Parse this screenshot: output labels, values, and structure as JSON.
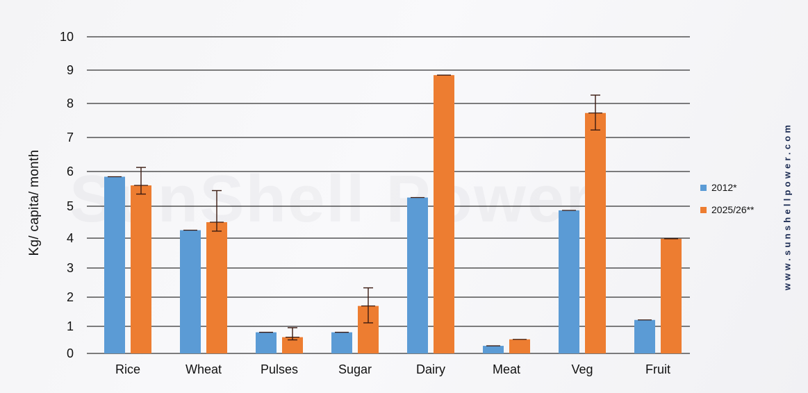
{
  "watermark": "SunShell Power",
  "site_url": "www.sunshellpower.com",
  "colors": {
    "series_2012": "#5b9bd5",
    "series_2025": "#ed7d31",
    "error_bar": "#3a1a10",
    "grid": "#000000"
  },
  "chart_data": {
    "type": "bar",
    "title": "",
    "xlabel": "",
    "ylabel": "Kg/ capita/ month",
    "ylim": [
      0,
      10
    ],
    "yticks": [
      "0",
      "1",
      "2",
      "3",
      "4",
      "5",
      "6",
      "7",
      "8",
      "9",
      "10"
    ],
    "grid": true,
    "legend_position": "right",
    "categories": [
      "Rice",
      "Wheat",
      "Pulses",
      "Sugar",
      "Dairy",
      "Meat",
      "Veg",
      "Fruit"
    ],
    "series": [
      {
        "name": "2012*",
        "color": "#5b9bd5",
        "values": [
          5.85,
          4.25,
          0.78,
          0.78,
          5.25,
          0.28,
          4.87,
          1.22
        ]
      },
      {
        "name": "2025/26**",
        "color": "#ed7d31",
        "values": [
          5.6,
          4.5,
          0.6,
          1.7,
          8.85,
          0.52,
          7.72,
          3.98
        ],
        "error_low": [
          5.35,
          4.22,
          0.5,
          1.12,
          null,
          null,
          7.22,
          null
        ],
        "error_high": [
          6.12,
          5.45,
          0.95,
          2.32,
          null,
          null,
          8.25,
          null
        ]
      }
    ]
  }
}
